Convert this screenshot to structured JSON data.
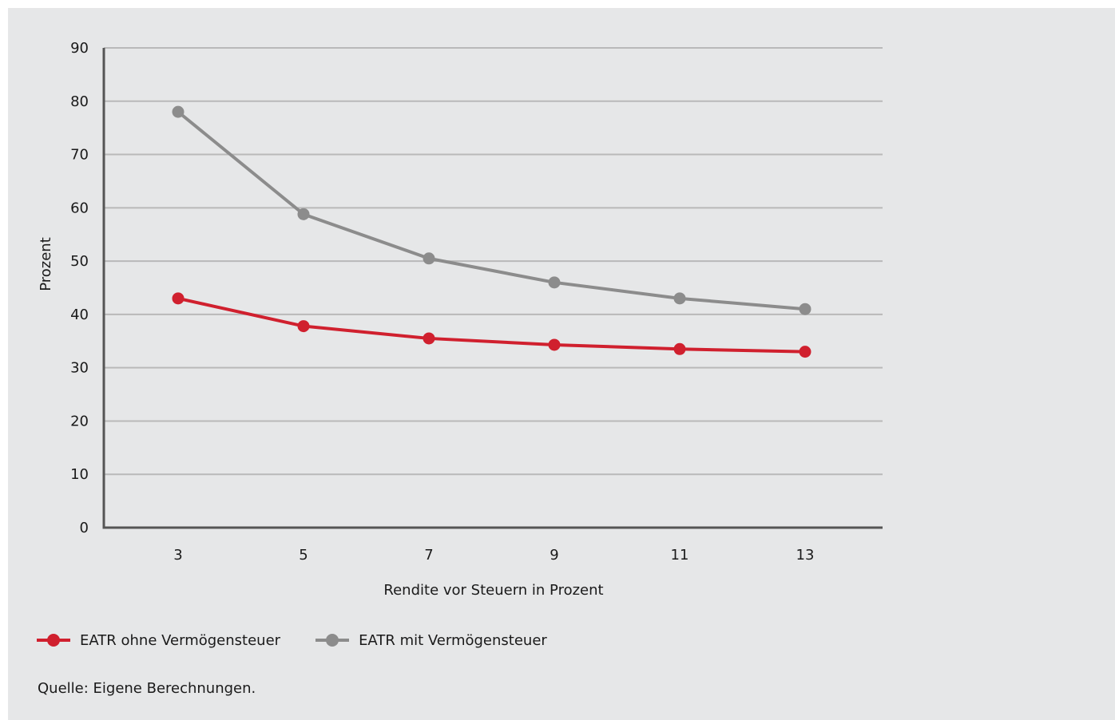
{
  "chart_data": {
    "type": "line",
    "title": "",
    "xlabel": "Rendite vor Steuern in Prozent",
    "ylabel": "Prozent",
    "x": [
      3,
      5,
      7,
      9,
      11,
      13
    ],
    "categories": [
      "3",
      "5",
      "7",
      "9",
      "11",
      "13"
    ],
    "ylim": [
      0,
      90
    ],
    "yticks": [
      "0",
      "10",
      "20",
      "30",
      "40",
      "50",
      "60",
      "70",
      "80",
      "90"
    ],
    "grid": true,
    "legend_position": "bottom-left",
    "series": [
      {
        "name": "EATR ohne Vermögensteuer",
        "color": "#d0202e",
        "values": [
          43.0,
          37.8,
          35.5,
          34.3,
          33.5,
          33.0
        ]
      },
      {
        "name": "EATR mit Vermögensteuer",
        "color": "#8c8c8c",
        "values": [
          78.0,
          58.8,
          50.5,
          46.0,
          43.0,
          41.0
        ]
      }
    ]
  },
  "source_note": "Quelle: Eigene Berechnungen."
}
